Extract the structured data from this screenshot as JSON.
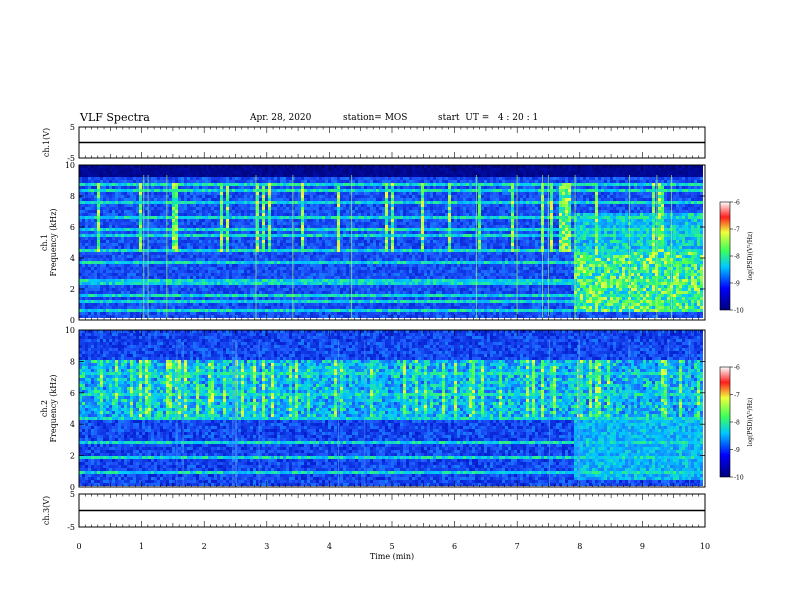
{
  "header": {
    "title": "VLF Spectra",
    "date": "Apr. 28, 2020",
    "station": "station= MOS",
    "start": "start  UT =   4 : 20 : 1"
  },
  "chart_data": [
    {
      "type": "line",
      "ylabel": "ch.1(V)",
      "ylim": [
        -5,
        5
      ],
      "yticks": [
        "5",
        "-5"
      ],
      "xlim": [
        0,
        10
      ],
      "series": [
        {
          "values": [
            0,
            0
          ]
        }
      ]
    },
    {
      "type": "heatmap",
      "ylabel": "ch.1\nFrequency (kHz)",
      "ylim": [
        0,
        10
      ],
      "yticks": [
        "0",
        "2",
        "4",
        "6",
        "8",
        "10"
      ],
      "xlim": [
        0,
        10
      ],
      "colorbar": {
        "label": "log(PSD)(V²/Hz)",
        "range": [
          -10,
          -6
        ],
        "ticks": [
          "-6",
          "-7",
          "-8",
          "-9",
          "-10"
        ]
      }
    },
    {
      "type": "heatmap",
      "ylabel": "ch.2\nFrequency (kHz)",
      "ylim": [
        0,
        10
      ],
      "yticks": [
        "0",
        "2",
        "4",
        "6",
        "8",
        "10"
      ],
      "xlim": [
        0,
        10
      ],
      "colorbar": {
        "label": "log(PSD)(V²/Hz)",
        "range": [
          -10,
          -6
        ],
        "ticks": [
          "-6",
          "-7",
          "-8",
          "-9",
          "-10"
        ]
      }
    },
    {
      "type": "line",
      "ylabel": "ch.3(V)",
      "ylim": [
        -5,
        5
      ],
      "yticks": [
        "5",
        "-5"
      ],
      "xlim": [
        0,
        10
      ],
      "xlabel": "Time  (min)",
      "xticks": [
        "0",
        "1",
        "2",
        "3",
        "4",
        "5",
        "6",
        "7",
        "8",
        "9",
        "10"
      ],
      "series": [
        {
          "values": [
            0,
            0
          ]
        }
      ]
    }
  ],
  "colors": {
    "low": "#00007a",
    "mid": "#1e50ff",
    "green": "#3cff5a",
    "yellow": "#f0ff3c",
    "red": "#ff1e1e"
  }
}
